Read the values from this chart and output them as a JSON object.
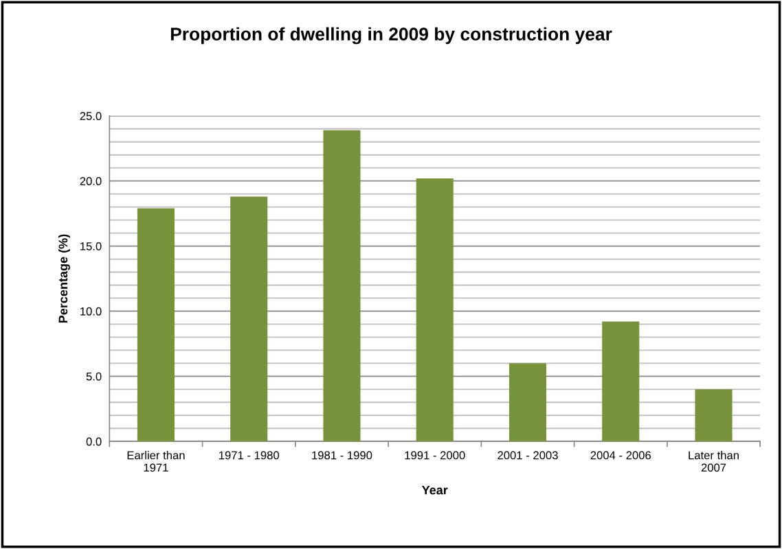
{
  "chart_data": {
    "type": "bar",
    "title": "Proportion of dwelling in 2009 by construction year",
    "xlabel": "Year",
    "ylabel": "Percentage (%)",
    "categories": [
      "Earlier than\n1971",
      "1971 - 1980",
      "1981 - 1990",
      "1991 - 2000",
      "2001 - 2003",
      "2004 - 2006",
      "Later than\n2007"
    ],
    "values": [
      17.9,
      18.8,
      23.9,
      20.2,
      6.0,
      9.2,
      4.0
    ],
    "color": "#77933c",
    "ylim": [
      0,
      25
    ],
    "yticks": [
      {
        "value": 0,
        "label": "0.0"
      },
      {
        "value": 1,
        "label": null
      },
      {
        "value": 2,
        "label": null
      },
      {
        "value": 3,
        "label": null
      },
      {
        "value": 4,
        "label": null
      },
      {
        "value": 5,
        "label": "5.0"
      },
      {
        "value": 6,
        "label": null
      },
      {
        "value": 7,
        "label": null
      },
      {
        "value": 8,
        "label": null
      },
      {
        "value": 9,
        "label": null
      },
      {
        "value": 10,
        "label": "10.0"
      },
      {
        "value": 11,
        "label": null
      },
      {
        "value": 12,
        "label": null
      },
      {
        "value": 13,
        "label": null
      },
      {
        "value": 14,
        "label": null
      },
      {
        "value": 15,
        "label": "15.0"
      },
      {
        "value": 16,
        "label": null
      },
      {
        "value": 17,
        "label": null
      },
      {
        "value": 18,
        "label": null
      },
      {
        "value": 19,
        "label": null
      },
      {
        "value": 20,
        "label": "20.0"
      },
      {
        "value": 21,
        "label": null
      },
      {
        "value": 22,
        "label": null
      },
      {
        "value": 23,
        "label": null
      },
      {
        "value": 24,
        "label": null
      },
      {
        "value": 25,
        "label": "25.0"
      }
    ],
    "grid": "y"
  }
}
